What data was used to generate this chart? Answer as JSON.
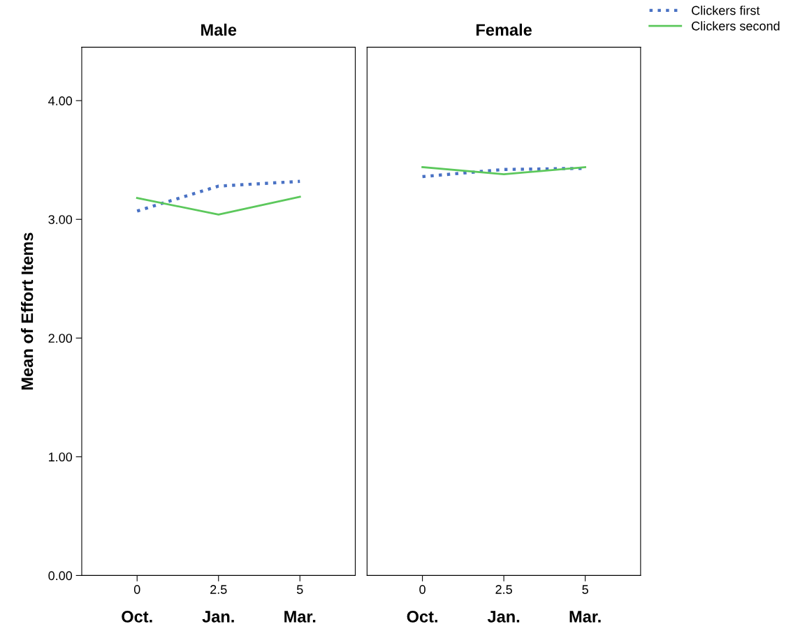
{
  "chart_data": [
    {
      "type": "line",
      "title": "Male",
      "ylabel": "Mean of Effort Items",
      "x": [
        0,
        2.5,
        5
      ],
      "xlim": [
        -1.7,
        6.7
      ],
      "xticks": [
        0,
        2.5,
        5
      ],
      "ylim": [
        0,
        4.45
      ],
      "yticks": [
        {
          "value": 0,
          "label": "0.00"
        },
        {
          "value": 1,
          "label": "1.00"
        },
        {
          "value": 2,
          "label": "2.00"
        },
        {
          "value": 3,
          "label": "3.00"
        },
        {
          "value": 4,
          "label": "4.00"
        }
      ],
      "annotations": [
        "Oct.",
        "Jan.",
        "Mar."
      ],
      "grid": false,
      "legend": "top right",
      "series": [
        {
          "name": "Clickers first",
          "color": "#4a72c4",
          "line_style": "dotted",
          "values": [
            3.07,
            3.28,
            3.32
          ]
        },
        {
          "name": "Clickers second",
          "color": "#5cc85c",
          "line_style": "solid",
          "values": [
            3.18,
            3.04,
            3.19
          ]
        }
      ]
    },
    {
      "type": "line",
      "title": "Female",
      "x": [
        0,
        2.5,
        5
      ],
      "xlim": [
        -1.7,
        6.7
      ],
      "xticks": [
        0,
        2.5,
        5
      ],
      "ylim": [
        0,
        4.45
      ],
      "tick_labels": "x",
      "annotations": [
        "Oct.",
        "Jan.",
        "Mar."
      ],
      "grid": false,
      "series": [
        {
          "color": "#4a72c4",
          "line_style": "dotted",
          "values": [
            3.36,
            3.42,
            3.43
          ]
        },
        {
          "color": "#5cc85c",
          "line_style": "solid",
          "values": [
            3.44,
            3.38,
            3.44
          ]
        }
      ]
    }
  ]
}
